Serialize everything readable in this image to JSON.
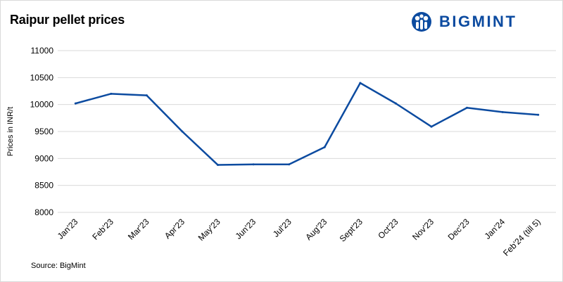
{
  "title": "Raipur pellet prices",
  "logo": {
    "text": "BIGMINT",
    "icon": "bigmint-logo-icon",
    "color": "#0c4ba0"
  },
  "source": "Source: BigMint",
  "chart_data": {
    "type": "line",
    "title": "Raipur pellet prices",
    "xlabel": "",
    "ylabel": "Prices in INR/t",
    "categories": [
      "Jan'23",
      "Feb'23",
      "Mar'23",
      "Apr'23",
      "May'23",
      "Jun'23",
      "Jul'23",
      "Aug'23",
      "Sept'23",
      "Oct'23",
      "Nov'23",
      "Dec'23",
      "Jan'24",
      "Feb'24 (till 5)"
    ],
    "series": [
      {
        "values": [
          10020,
          10200,
          10170,
          9500,
          8880,
          8890,
          8890,
          9210,
          10400,
          10020,
          9590,
          9940,
          9860,
          9810
        ],
        "color": "#0c4ba0"
      }
    ],
    "ylim": [
      8000,
      11000
    ],
    "yticks": [
      8000,
      8500,
      9000,
      9500,
      10000,
      10500,
      11000
    ],
    "grid": true,
    "legend": "none"
  }
}
